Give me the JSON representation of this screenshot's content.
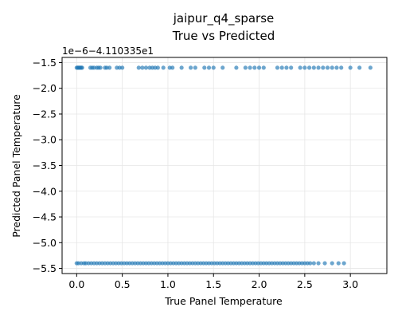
{
  "chart_data": {
    "type": "scatter",
    "title": "jaipur_q4_sparse",
    "subtitle": "True vs Predicted",
    "xlabel": "True Panel Temperature",
    "ylabel": "Predicted Panel Temperature",
    "y_offset_text": "1e−6−4.110335e1",
    "xlim": [
      -0.16,
      3.4
    ],
    "ylim": [
      -5.6,
      -1.4
    ],
    "x_ticks": [
      0.0,
      0.5,
      1.0,
      1.5,
      2.0,
      2.5,
      3.0
    ],
    "x_tick_labels": [
      "0.0",
      "0.5",
      "1.0",
      "1.5",
      "2.0",
      "2.5",
      "3.0"
    ],
    "y_ticks": [
      -1.5,
      -2.0,
      -2.5,
      -3.0,
      -3.5,
      -4.0,
      -4.5,
      -5.0,
      -5.5
    ],
    "y_tick_labels": [
      "−1.5",
      "−2.0",
      "−2.5",
      "−3.0",
      "−3.5",
      "−4.0",
      "−4.5",
      "−5.0",
      "−5.5"
    ],
    "grid": true,
    "marker_color": "#1f77b4",
    "series": [
      {
        "y_level": -1.6,
        "x": [
          0.0,
          0.01,
          0.02,
          0.03,
          0.04,
          0.05,
          0.06,
          0.15,
          0.17,
          0.19,
          0.22,
          0.24,
          0.26,
          0.31,
          0.33,
          0.36,
          0.44,
          0.47,
          0.5,
          0.68,
          0.72,
          0.76,
          0.8,
          0.83,
          0.86,
          0.89,
          0.95,
          1.02,
          1.05,
          1.15,
          1.25,
          1.3,
          1.4,
          1.45,
          1.5,
          1.6,
          1.75,
          1.85,
          1.9,
          1.95,
          2.0,
          2.05,
          2.2,
          2.25,
          2.3,
          2.35,
          2.45,
          2.5,
          2.55,
          2.6,
          2.65,
          2.7,
          2.75,
          2.8,
          2.85,
          2.9,
          3.0,
          3.1,
          3.22
        ]
      },
      {
        "y_level": -5.4,
        "x": [
          0.0,
          0.02,
          0.05,
          0.08,
          0.1,
          0.13,
          0.16,
          0.19,
          0.22,
          0.25,
          0.28,
          0.31,
          0.34,
          0.37,
          0.4,
          0.43,
          0.46,
          0.49,
          0.52,
          0.55,
          0.58,
          0.61,
          0.64,
          0.67,
          0.7,
          0.73,
          0.76,
          0.79,
          0.82,
          0.85,
          0.88,
          0.91,
          0.94,
          0.97,
          1.0,
          1.03,
          1.06,
          1.09,
          1.12,
          1.15,
          1.18,
          1.21,
          1.24,
          1.27,
          1.3,
          1.33,
          1.36,
          1.39,
          1.42,
          1.45,
          1.48,
          1.51,
          1.54,
          1.57,
          1.6,
          1.63,
          1.66,
          1.69,
          1.72,
          1.75,
          1.78,
          1.81,
          1.84,
          1.87,
          1.9,
          1.93,
          1.96,
          1.99,
          2.02,
          2.05,
          2.08,
          2.11,
          2.14,
          2.17,
          2.2,
          2.23,
          2.26,
          2.29,
          2.32,
          2.35,
          2.38,
          2.41,
          2.44,
          2.47,
          2.5,
          2.53,
          2.56,
          2.6,
          2.65,
          2.72,
          2.8,
          2.87,
          2.93
        ]
      }
    ]
  }
}
